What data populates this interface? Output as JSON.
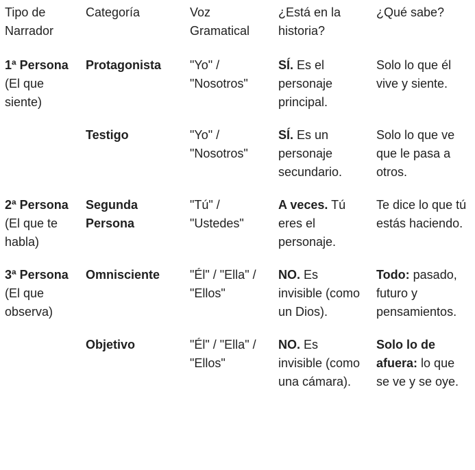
{
  "table": {
    "header": [
      "Tipo de Narrador",
      "Categoría",
      "Voz Gramatical",
      "¿Está en la historia?",
      "¿Qué sabe?"
    ],
    "rows": [
      [
        {
          "bold": "1ª Persona",
          "text": "(El que siente)"
        },
        {
          "bold": "Protagonista"
        },
        "\"Yo\" / \"Nosotros\"",
        {
          "bold": "SÍ.",
          "text": "Es el personaje principal."
        },
        "Solo lo que él vive y siente."
      ],
      [
        null,
        {
          "bold": "Testigo"
        },
        "\"Yo\" / \"Nosotros\"",
        {
          "bold": "SÍ.",
          "text": "Es un personaje secundario."
        },
        "Solo lo que ve que le pasa a otros."
      ],
      [
        {
          "bold": "2ª Persona",
          "text": "(El que te habla)"
        },
        {
          "bold": "Segunda Persona"
        },
        "\"Tú\" / \"Ustedes\"",
        {
          "bold": "A veces.",
          "text": "Tú eres el personaje."
        },
        "Te dice lo que tú estás haciendo."
      ],
      [
        {
          "bold": "3ª Persona",
          "text": "(El que observa)"
        },
        {
          "bold": "Omnisciente"
        },
        "\"Él\" / \"Ella\" / \"Ellos\"",
        {
          "bold": "NO.",
          "text": "Es invisible (como un Dios)."
        },
        {
          "bold": "Todo:",
          "text": "pasado, futuro y pensamientos."
        }
      ],
      [
        null,
        {
          "bold": "Objetivo"
        },
        "\"Él\" / \"Ella\" / \"Ellos\"",
        {
          "bold": "NO.",
          "text": "Es invisible (como una cámara)."
        },
        {
          "bold": "Solo lo de afuera:",
          "text": "lo que se ve y se oye."
        }
      ]
    ]
  }
}
